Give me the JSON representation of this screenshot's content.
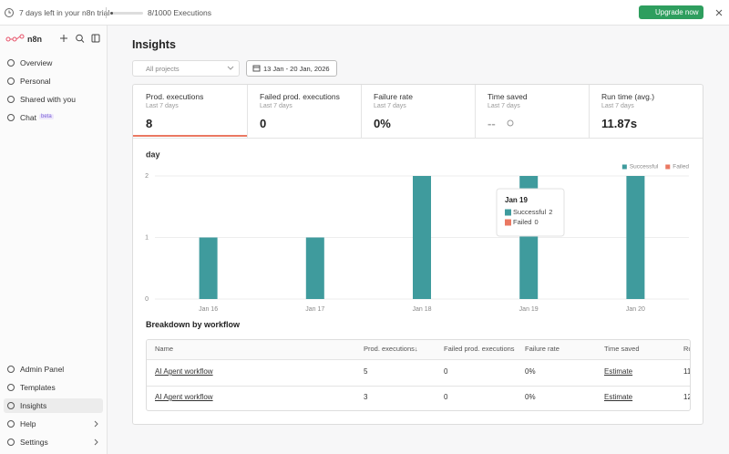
{
  "banner": {
    "trial": "7 days left in your n8n trial",
    "executions": "8/1000 Executions",
    "upgrade": "Upgrade now"
  },
  "sidebar": {
    "logo": "n8n",
    "nav": [
      "Overview",
      "Personal",
      "Shared with you",
      "Chat"
    ],
    "badge": "beta",
    "bottom": [
      "Admin Panel",
      "Templates",
      "Insights",
      "Help",
      "Settings"
    ]
  },
  "header": {
    "title": "Insights",
    "project": "All projects",
    "date_range": "13 Jan - 20 Jan, 2026"
  },
  "stats": [
    {
      "label": "Prod. executions",
      "period": "Last 7 days",
      "value": "8"
    },
    {
      "label": "Failed prod. executions",
      "period": "Last 7 days",
      "value": "0"
    },
    {
      "label": "Failure rate",
      "period": "Last 7 days",
      "value": "0%"
    },
    {
      "label": "Time saved",
      "period": "Last 7 days",
      "value": "--"
    },
    {
      "label": "Run time (avg.)",
      "period": "Last 7 days",
      "value": "11.87s"
    }
  ],
  "chart_data": {
    "type": "bar",
    "stacked": true,
    "title": "day",
    "categories": [
      "Jan 16",
      "Jan 17",
      "Jan 18",
      "Jan 19",
      "Jan 20"
    ],
    "series": [
      {
        "name": "Successful",
        "color": "#3f9b9d",
        "values": [
          1,
          1,
          2,
          2,
          2
        ]
      },
      {
        "name": "Failed",
        "color": "#ea7862",
        "values": [
          0,
          0,
          0,
          0,
          0
        ]
      }
    ],
    "ylim": [
      0,
      2
    ],
    "yticks": [
      0,
      1,
      2
    ],
    "grid": true,
    "legend": "top-right"
  },
  "table": {
    "title": "Breakdown by workflow",
    "columns": [
      "Name",
      "Prod. executions↓",
      "Failed prod. executions",
      "Failure rate",
      "Time saved",
      "Run time (avg.)"
    ],
    "rows": [
      [
        "AI Agent workflow",
        "5",
        "0",
        "0%",
        "Estimate",
        "11"
      ],
      [
        "AI Agent workflow",
        "3",
        "0",
        "0%",
        "Estimate",
        "12"
      ]
    ]
  }
}
